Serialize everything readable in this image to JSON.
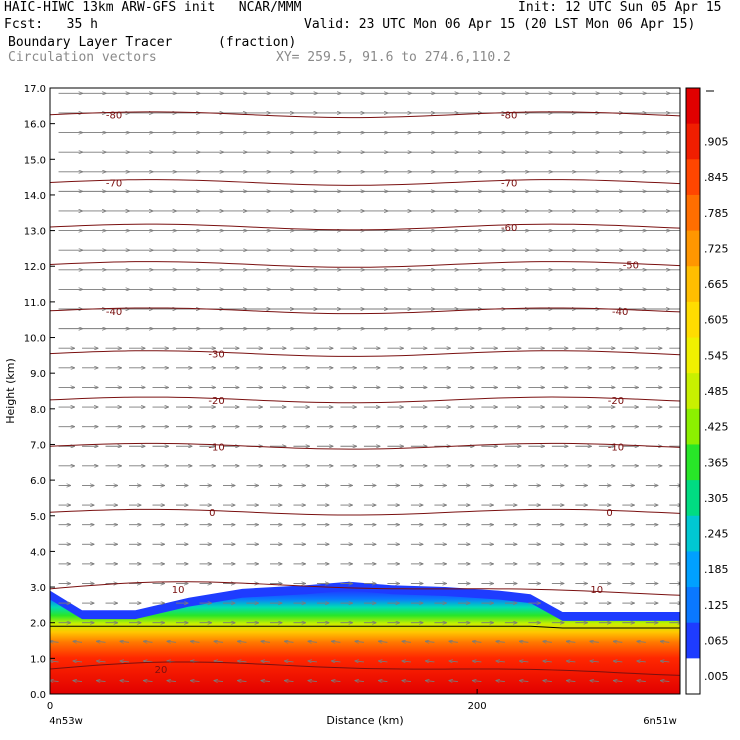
{
  "header": {
    "title_left": "HAIC-HIWC 13km ARW-GFS init   NCAR/MMM",
    "init": "Init: 12 UTC Sun 05 Apr 15",
    "fcst": "Fcst:   35 h",
    "valid": "Valid: 23 UTC Mon 06 Apr 15 (20 LST Mon 06 Apr 15)",
    "field_name": "Boundary Layer Tracer",
    "field_units": "(fraction)",
    "vector_name": "Circulation vectors",
    "xy": "XY= 259.5, 91.6 to 274.6,110.2"
  },
  "chart_data": {
    "type": "heatmap",
    "xlabel": "Distance (km)",
    "ylabel": "Height (km)",
    "x_ticks": [
      "0",
      "200"
    ],
    "x_left": "4n53w",
    "x_right": "6n51w",
    "xlim": [
      0,
      295
    ],
    "ylim": [
      0,
      17
    ],
    "y_ticks": [
      "0.0",
      "1.0",
      "2.0",
      "3.0",
      "4.0",
      "5.0",
      "6.0",
      "7.0",
      "8.0",
      "9.0",
      "10.0",
      "11.0",
      "12.0",
      "13.0",
      "14.0",
      "15.0",
      "16.0",
      "17.0"
    ],
    "colorbar_labels": [
      ".005",
      ".065",
      ".125",
      ".185",
      ".245",
      ".305",
      ".365",
      ".425",
      ".485",
      ".545",
      ".605",
      ".665",
      ".725",
      ".785",
      ".845",
      ".905"
    ],
    "colorbar_colors": [
      "#ffffff",
      "#1e3cff",
      "#0a78ff",
      "#00a0ff",
      "#00c8d2",
      "#00dc82",
      "#28e628",
      "#8cf000",
      "#c8f000",
      "#f0f000",
      "#ffdc00",
      "#ffbe00",
      "#ff9600",
      "#ff6e00",
      "#ff4600",
      "#f01e00",
      "#e10000"
    ],
    "tracer_profile": {
      "x_km": [
        0,
        15,
        40,
        65,
        90,
        120,
        140,
        160,
        185,
        210,
        225,
        240,
        260,
        295
      ],
      "top_km": [
        2.9,
        2.35,
        2.35,
        2.7,
        2.95,
        3.05,
        3.15,
        3.05,
        3.0,
        2.9,
        2.8,
        2.3,
        2.3,
        2.3
      ]
    },
    "temperature_contours": [
      {
        "label": "-80",
        "z": 16.25,
        "label_x": [
          30,
          215
        ]
      },
      {
        "label": "-70",
        "z": 14.35,
        "label_x": [
          30,
          215
        ]
      },
      {
        "label": "-60",
        "z": 13.1,
        "label_x": [
          215
        ]
      },
      {
        "label": "-50",
        "z": 12.05,
        "label_x": [
          272
        ]
      },
      {
        "label": "-40",
        "z": 10.75,
        "label_x": [
          30,
          267
        ]
      },
      {
        "label": "-30",
        "z": 9.55,
        "label_x": [
          78
        ]
      },
      {
        "label": "-20",
        "z": 8.25,
        "label_x": [
          78,
          265
        ]
      },
      {
        "label": "-10",
        "z": 6.95,
        "label_x": [
          78,
          265
        ]
      },
      {
        "label": "0",
        "z": 5.1,
        "label_x": [
          76,
          262
        ]
      },
      {
        "label": "10",
        "z": 2.95,
        "label_x": [
          60,
          256
        ]
      },
      {
        "label": "20",
        "z": 0.7,
        "label_x": [
          52
        ]
      }
    ],
    "vectors": "circulation vectors (u,w) on a regular grid; mostly westerly aloft, easterly in the boundary layer"
  }
}
